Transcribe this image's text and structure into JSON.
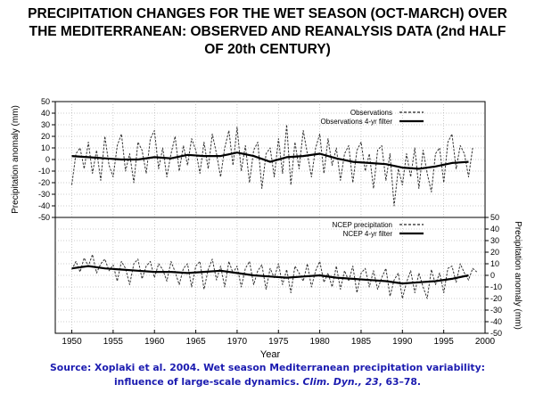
{
  "title_lines": [
    "PRECIPITATION CHANGES FOR THE WET SEASON (OCT-MARCH) OVER",
    "THE MEDITERRANEAN: OBSERVED AND REANALYSIS DATA (2nd HALF",
    "OF 20th CENTURY)"
  ],
  "source": {
    "line1": "Source: Xoplaki et al. 2004. Wet season Mediterranean precipitation variability:",
    "line2_prefix": "influence of large-scale dynamics. ",
    "journal": "Clim. Dyn., 23",
    "line2_suffix": ", 63–78."
  },
  "colors": {
    "line": "#222222",
    "axis": "#000000",
    "source_text": "#1b1bb0"
  },
  "chart_data": [
    {
      "type": "line",
      "xlabel": "Year",
      "ylabel": "Precipitation anomaly (mm)",
      "xlim": [
        1948,
        2000
      ],
      "ylim": [
        -50,
        50
      ],
      "xticks": [
        1950,
        1955,
        1960,
        1965,
        1970,
        1975,
        1980,
        1985,
        1990,
        1995,
        2000
      ],
      "yticks": [
        50,
        40,
        30,
        20,
        10,
        0,
        -10,
        -20,
        -30,
        -40,
        -50
      ],
      "grid": true,
      "legend_position": "top-right",
      "series": [
        {
          "name": "Observations",
          "style": "dashed",
          "x": [
            1950,
            1950.5,
            1951,
            1951.5,
            1952,
            1952.5,
            1953,
            1953.5,
            1954,
            1954.5,
            1955,
            1955.5,
            1956,
            1956.5,
            1957,
            1957.5,
            1958,
            1958.5,
            1959,
            1959.5,
            1960,
            1960.5,
            1961,
            1961.5,
            1962,
            1962.5,
            1963,
            1963.5,
            1964,
            1964.5,
            1965,
            1965.5,
            1966,
            1966.5,
            1967,
            1967.5,
            1968,
            1968.5,
            1969,
            1969.5,
            1970,
            1970.5,
            1971,
            1971.5,
            1972,
            1972.5,
            1973,
            1973.5,
            1974,
            1974.5,
            1975,
            1975.5,
            1976,
            1976.5,
            1977,
            1977.5,
            1978,
            1978.5,
            1979,
            1979.5,
            1980,
            1980.5,
            1981,
            1981.5,
            1982,
            1982.5,
            1983,
            1983.5,
            1984,
            1984.5,
            1985,
            1985.5,
            1986,
            1986.5,
            1987,
            1987.5,
            1988,
            1988.5,
            1989,
            1989.5,
            1990,
            1990.5,
            1991,
            1991.5,
            1992,
            1992.5,
            1993,
            1993.5,
            1994,
            1994.5,
            1995,
            1995.5,
            1996,
            1996.5,
            1997,
            1997.5,
            1998,
            1998.5
          ],
          "values": [
            -22,
            5,
            10,
            -8,
            15,
            -12,
            8,
            -18,
            20,
            -5,
            -15,
            12,
            22,
            -10,
            5,
            -20,
            15,
            8,
            -12,
            18,
            25,
            -8,
            10,
            -15,
            5,
            20,
            -10,
            12,
            -5,
            18,
            8,
            -12,
            15,
            -8,
            22,
            5,
            -15,
            10,
            25,
            -5,
            28,
            -10,
            12,
            -20,
            8,
            15,
            -25,
            5,
            10,
            -15,
            18,
            -12,
            30,
            -22,
            15,
            -8,
            25,
            5,
            -15,
            10,
            22,
            -12,
            18,
            -5,
            10,
            -18,
            5,
            12,
            -20,
            8,
            15,
            -10,
            5,
            -25,
            8,
            12,
            -18,
            5,
            -40,
            -8,
            -22,
            5,
            -15,
            10,
            -25,
            8,
            -12,
            -28,
            5,
            10,
            -20,
            15,
            22,
            -8,
            12,
            5,
            -15,
            10
          ]
        },
        {
          "name": "Observations 4-yr filter",
          "style": "solid",
          "x": [
            1950,
            1952,
            1954,
            1956,
            1958,
            1960,
            1962,
            1964,
            1966,
            1968,
            1970,
            1972,
            1974,
            1976,
            1978,
            1980,
            1982,
            1984,
            1986,
            1988,
            1990,
            1992,
            1994,
            1996,
            1998
          ],
          "values": [
            3,
            2,
            1,
            0,
            0,
            2,
            1,
            4,
            3,
            3,
            6,
            3,
            -2,
            2,
            3,
            5,
            1,
            -2,
            -3,
            -4,
            -7,
            -8,
            -6,
            -3,
            -2
          ]
        }
      ]
    },
    {
      "type": "line",
      "xlabel": "Year",
      "ylabel": "Precipitation anomaly (mm)",
      "xlim": [
        1948,
        2000
      ],
      "ylim": [
        -50,
        50
      ],
      "xticks": [
        1950,
        1955,
        1960,
        1965,
        1970,
        1975,
        1980,
        1985,
        1990,
        1995,
        2000
      ],
      "yticks": [
        50,
        40,
        30,
        20,
        10,
        0,
        -10,
        -20,
        -30,
        -40,
        -50
      ],
      "grid": true,
      "legend_position": "top-right",
      "series": [
        {
          "name": "NCEP precipitation",
          "style": "dashed",
          "x": [
            1950,
            1950.5,
            1951,
            1951.5,
            1952,
            1952.5,
            1953,
            1953.5,
            1954,
            1954.5,
            1955,
            1955.5,
            1956,
            1956.5,
            1957,
            1957.5,
            1958,
            1958.5,
            1959,
            1959.5,
            1960,
            1960.5,
            1961,
            1961.5,
            1962,
            1962.5,
            1963,
            1963.5,
            1964,
            1964.5,
            1965,
            1965.5,
            1966,
            1966.5,
            1967,
            1967.5,
            1968,
            1968.5,
            1969,
            1969.5,
            1970,
            1970.5,
            1971,
            1971.5,
            1972,
            1972.5,
            1973,
            1973.5,
            1974,
            1974.5,
            1975,
            1975.5,
            1976,
            1976.5,
            1977,
            1977.5,
            1978,
            1978.5,
            1979,
            1979.5,
            1980,
            1980.5,
            1981,
            1981.5,
            1982,
            1982.5,
            1983,
            1983.5,
            1984,
            1984.5,
            1985,
            1985.5,
            1986,
            1986.5,
            1987,
            1987.5,
            1988,
            1988.5,
            1989,
            1989.5,
            1990,
            1990.5,
            1991,
            1991.5,
            1992,
            1992.5,
            1993,
            1993.5,
            1994,
            1994.5,
            1995,
            1995.5,
            1996,
            1996.5,
            1997,
            1997.5,
            1998,
            1998.5,
            1999
          ],
          "values": [
            5,
            12,
            3,
            15,
            8,
            18,
            2,
            10,
            14,
            4,
            9,
            -5,
            12,
            6,
            -8,
            10,
            14,
            -3,
            8,
            12,
            -2,
            10,
            5,
            -5,
            12,
            3,
            -8,
            6,
            10,
            -10,
            8,
            12,
            -12,
            5,
            14,
            -4,
            8,
            -10,
            12,
            2,
            8,
            -10,
            6,
            12,
            -8,
            4,
            9,
            -12,
            6,
            -2,
            10,
            -8,
            5,
            -15,
            8,
            2,
            -5,
            10,
            -10,
            4,
            12,
            -6,
            2,
            -10,
            8,
            -12,
            4,
            -5,
            8,
            -15,
            2,
            6,
            -10,
            4,
            -12,
            -2,
            6,
            -18,
            -4,
            2,
            -20,
            -6,
            4,
            -15,
            2,
            -10,
            -20,
            5,
            -8,
            2,
            -15,
            6,
            8,
            -6,
            10,
            2,
            -4,
            6,
            3
          ]
        },
        {
          "name": "NCEP 4-yr filter",
          "style": "solid",
          "x": [
            1950,
            1952,
            1954,
            1956,
            1958,
            1960,
            1962,
            1964,
            1966,
            1968,
            1970,
            1972,
            1974,
            1976,
            1978,
            1980,
            1982,
            1984,
            1986,
            1988,
            1990,
            1992,
            1994,
            1996,
            1998
          ],
          "values": [
            6,
            8,
            6,
            5,
            4,
            3,
            3,
            2,
            3,
            4,
            2,
            0,
            -1,
            -2,
            -1,
            0,
            -2,
            -3,
            -4,
            -5,
            -7,
            -6,
            -5,
            -3,
            0
          ]
        }
      ]
    }
  ]
}
